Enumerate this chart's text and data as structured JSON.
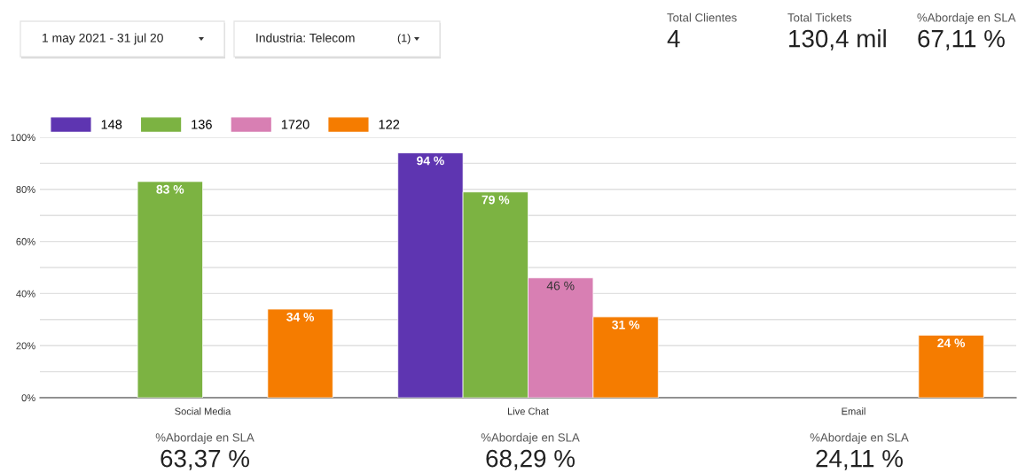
{
  "chart_data": [
    {
      "type": "other",
      "annotations": [
        "1 may 2021 - 31 jul 20",
        "Industria: Telecom",
        "(1)"
      ]
    },
    {
      "type": "other",
      "annotations": [
        "Total Clientes",
        "4",
        "Total Tickets",
        "130,4 mil",
        "%Abordaje en SLA",
        "67,11 %"
      ]
    },
    {
      "type": "bar",
      "categories": [
        "Social Media",
        "Live Chat",
        "Email"
      ],
      "series": [
        {
          "name": "148",
          "color": "#5e35b1",
          "values": [
            null,
            94,
            null
          ],
          "value_labels": [
            null,
            "94 %",
            null
          ]
        },
        {
          "name": "136",
          "color": "#7cb342",
          "values": [
            83,
            79,
            null
          ],
          "value_labels": [
            "83 %",
            "79 %",
            null
          ]
        },
        {
          "name": "1720",
          "color": "#d87fb3",
          "values": [
            null,
            46,
            null
          ],
          "value_labels": [
            null,
            "46 %",
            null
          ]
        },
        {
          "name": "122",
          "color": "#f57c00",
          "values": [
            34,
            31,
            24
          ],
          "value_labels": [
            "34 %",
            "31 %",
            "24 %"
          ]
        }
      ],
      "ylim": [
        0,
        100
      ],
      "yticks": [
        {
          "value": 0,
          "label": "0%"
        },
        {
          "value": 10,
          "label": null
        },
        {
          "value": 20,
          "label": "20%"
        },
        {
          "value": 30,
          "label": null
        },
        {
          "value": 40,
          "label": "40%"
        },
        {
          "value": 50,
          "label": null
        },
        {
          "value": 60,
          "label": "60%"
        },
        {
          "value": 70,
          "label": null
        },
        {
          "value": 80,
          "label": "80%"
        },
        {
          "value": 90,
          "label": null
        },
        {
          "value": 100,
          "label": "100%"
        }
      ],
      "grid": "y",
      "legend": "top left"
    },
    {
      "type": "other",
      "annotations": [
        "%Abordaje en SLA",
        "63,37 %",
        "%Abordaje en SLA",
        "68,29 %",
        "%Abordaje en SLA",
        "24,11 %"
      ]
    }
  ]
}
